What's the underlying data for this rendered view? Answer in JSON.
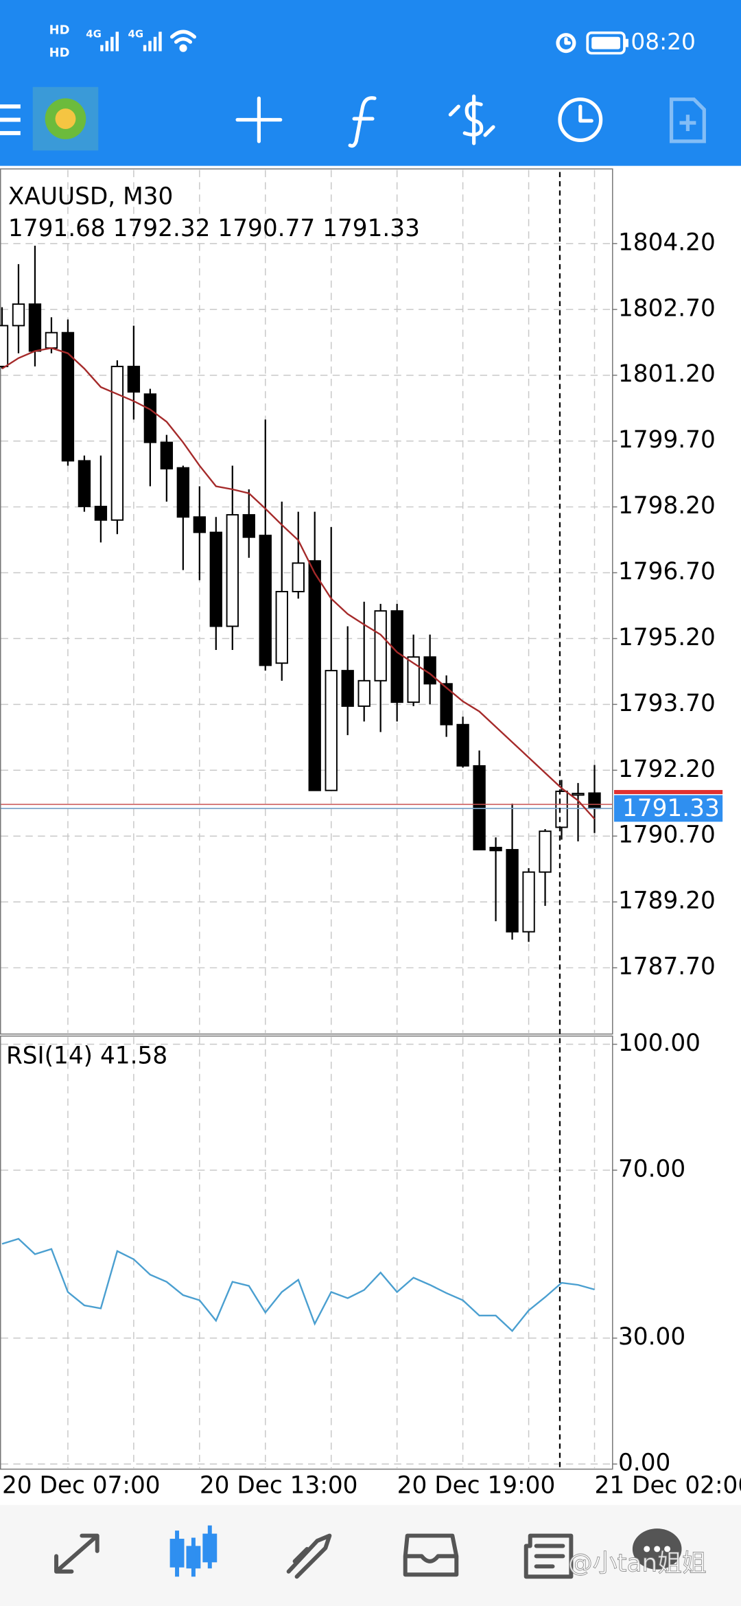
{
  "status_bar": {
    "hd1": "HD",
    "hd2": "HD",
    "net1": "4G",
    "net2": "4G",
    "time": "08:20"
  },
  "chart_data": [
    {
      "type": "candlestick",
      "title": "XAUUSD, M30",
      "categories": [
        "20 Dec 07:00",
        null,
        null,
        null,
        null,
        null,
        null,
        null,
        null,
        null,
        null,
        null,
        "20 Dec 13:00",
        null,
        null,
        null,
        null,
        null,
        null,
        null,
        null,
        null,
        null,
        null,
        "20 Dec 19:00",
        null,
        null,
        null,
        null,
        null,
        null,
        null,
        null,
        null,
        null,
        null,
        "21 Dec 02:00"
      ],
      "candles": [
        {
          "open": 1801.4,
          "high": 1802.75,
          "low": 1801.35,
          "close": 1802.33
        },
        {
          "open": 1802.33,
          "high": 1803.73,
          "low": 1801.7,
          "close": 1802.82
        },
        {
          "open": 1802.82,
          "high": 1804.15,
          "low": 1801.4,
          "close": 1801.75
        },
        {
          "open": 1801.82,
          "high": 1802.52,
          "low": 1801.7,
          "close": 1802.17
        },
        {
          "open": 1802.17,
          "high": 1802.47,
          "low": 1799.14,
          "close": 1799.25
        },
        {
          "open": 1799.25,
          "high": 1799.37,
          "low": 1798.09,
          "close": 1798.21
        },
        {
          "open": 1798.21,
          "high": 1799.37,
          "low": 1797.39,
          "close": 1797.9
        },
        {
          "open": 1797.9,
          "high": 1801.54,
          "low": 1797.58,
          "close": 1801.4
        },
        {
          "open": 1801.4,
          "high": 1802.33,
          "low": 1800.19,
          "close": 1800.82
        },
        {
          "open": 1800.77,
          "high": 1800.89,
          "low": 1798.67,
          "close": 1799.67
        },
        {
          "open": 1799.67,
          "high": 1799.84,
          "low": 1798.32,
          "close": 1799.07
        },
        {
          "open": 1799.09,
          "high": 1799.14,
          "low": 1796.76,
          "close": 1797.97
        },
        {
          "open": 1797.97,
          "high": 1798.67,
          "low": 1796.53,
          "close": 1797.62
        },
        {
          "open": 1797.62,
          "high": 1797.97,
          "low": 1794.94,
          "close": 1795.48
        },
        {
          "open": 1795.48,
          "high": 1799.14,
          "low": 1794.94,
          "close": 1798.02
        },
        {
          "open": 1798.02,
          "high": 1798.6,
          "low": 1797.04,
          "close": 1797.51
        },
        {
          "open": 1797.55,
          "high": 1800.19,
          "low": 1794.47,
          "close": 1794.59
        },
        {
          "open": 1794.64,
          "high": 1798.32,
          "low": 1794.24,
          "close": 1796.27
        },
        {
          "open": 1796.27,
          "high": 1798.09,
          "low": 1796.11,
          "close": 1796.92
        },
        {
          "open": 1796.97,
          "high": 1798.09,
          "low": 1791.74,
          "close": 1791.74
        },
        {
          "open": 1791.74,
          "high": 1797.74,
          "low": 1791.74,
          "close": 1794.47
        },
        {
          "open": 1794.47,
          "high": 1795.48,
          "low": 1793.0,
          "close": 1793.66
        },
        {
          "open": 1793.66,
          "high": 1796.04,
          "low": 1793.31,
          "close": 1794.24
        },
        {
          "open": 1794.24,
          "high": 1795.99,
          "low": 1793.07,
          "close": 1795.83
        },
        {
          "open": 1795.83,
          "high": 1795.99,
          "low": 1793.31,
          "close": 1793.75
        },
        {
          "open": 1793.75,
          "high": 1795.29,
          "low": 1793.66,
          "close": 1794.78
        },
        {
          "open": 1794.78,
          "high": 1795.29,
          "low": 1793.7,
          "close": 1794.17
        },
        {
          "open": 1794.17,
          "high": 1794.36,
          "low": 1792.96,
          "close": 1793.24
        },
        {
          "open": 1793.24,
          "high": 1793.42,
          "low": 1792.26,
          "close": 1792.3
        },
        {
          "open": 1792.3,
          "high": 1792.65,
          "low": 1790.39,
          "close": 1790.39
        },
        {
          "open": 1790.44,
          "high": 1790.67,
          "low": 1788.76,
          "close": 1790.37
        },
        {
          "open": 1790.39,
          "high": 1791.44,
          "low": 1788.34,
          "close": 1788.52
        },
        {
          "open": 1788.52,
          "high": 1789.97,
          "low": 1788.29,
          "close": 1789.88
        },
        {
          "open": 1789.88,
          "high": 1790.86,
          "low": 1789.11,
          "close": 1790.81
        },
        {
          "open": 1790.9,
          "high": 1791.98,
          "low": 1790.62,
          "close": 1791.72
        },
        {
          "open": 1791.67,
          "high": 1791.91,
          "low": 1790.58,
          "close": 1791.67
        },
        {
          "open": 1791.68,
          "high": 1792.32,
          "low": 1790.77,
          "close": 1791.33
        }
      ],
      "series": [
        {
          "color": "#a52a2a",
          "values": [
            1801.35,
            1801.59,
            1801.75,
            1801.82,
            1801.7,
            1801.35,
            1800.93,
            1800.77,
            1800.61,
            1800.42,
            1800.14,
            1799.67,
            1799.14,
            1798.67,
            1798.6,
            1798.51,
            1798.16,
            1797.79,
            1797.44,
            1796.69,
            1796.11,
            1795.76,
            1795.52,
            1795.29,
            1794.89,
            1794.64,
            1794.4,
            1794.08,
            1793.77,
            1793.54,
            1793.19,
            1792.84,
            1792.49,
            1792.14,
            1791.79,
            1791.51,
            1791.09
          ]
        }
      ],
      "up_color": "#ffffff",
      "down_color": "#000000",
      "price_tag_color": "#2f8ff0",
      "ylim": [
        1786.19,
        1805.9
      ],
      "yticks": [
        {
          "value": 1787.7,
          "label": "1787.70"
        },
        {
          "value": 1789.2,
          "label": "1789.20"
        },
        {
          "value": 1790.7,
          "label": "1790.70"
        },
        {
          "value": 1792.2,
          "label": "1792.20"
        },
        {
          "value": 1793.7,
          "label": "1793.70"
        },
        {
          "value": 1795.2,
          "label": "1795.20"
        },
        {
          "value": 1796.7,
          "label": "1796.70"
        },
        {
          "value": 1798.2,
          "label": "1798.20"
        },
        {
          "value": 1799.7,
          "label": "1799.70"
        },
        {
          "value": 1801.2,
          "label": "1801.20"
        },
        {
          "value": 1802.7,
          "label": "1802.70"
        },
        {
          "value": 1804.2,
          "label": "1804.20"
        }
      ],
      "grid": true
    },
    {
      "type": "line",
      "title": "RSI(14)",
      "series": [
        {
          "color": "#4a9fd0",
          "values": [
            52.44,
            53.66,
            50.0,
            51.22,
            40.98,
            37.8,
            37.07,
            50.73,
            48.78,
            45.12,
            43.41,
            40.24,
            39.02,
            34.15,
            43.41,
            42.44,
            36.1,
            40.98,
            43.9,
            33.41,
            40.98,
            39.51,
            41.46,
            45.61,
            40.98,
            44.39,
            42.68,
            40.73,
            39.02,
            35.37,
            35.37,
            31.71,
            36.59,
            39.76,
            43.17,
            42.68,
            41.58
          ]
        }
      ],
      "ylim": [
        0,
        100
      ],
      "yticks": [
        {
          "value": 0,
          "label": "0.00"
        },
        {
          "value": 30,
          "label": "30.00"
        },
        {
          "value": 70,
          "label": "70.00"
        },
        {
          "value": 100,
          "label": "100.00"
        }
      ],
      "grid": true
    }
  ],
  "watermark": "@小tan姐姐"
}
